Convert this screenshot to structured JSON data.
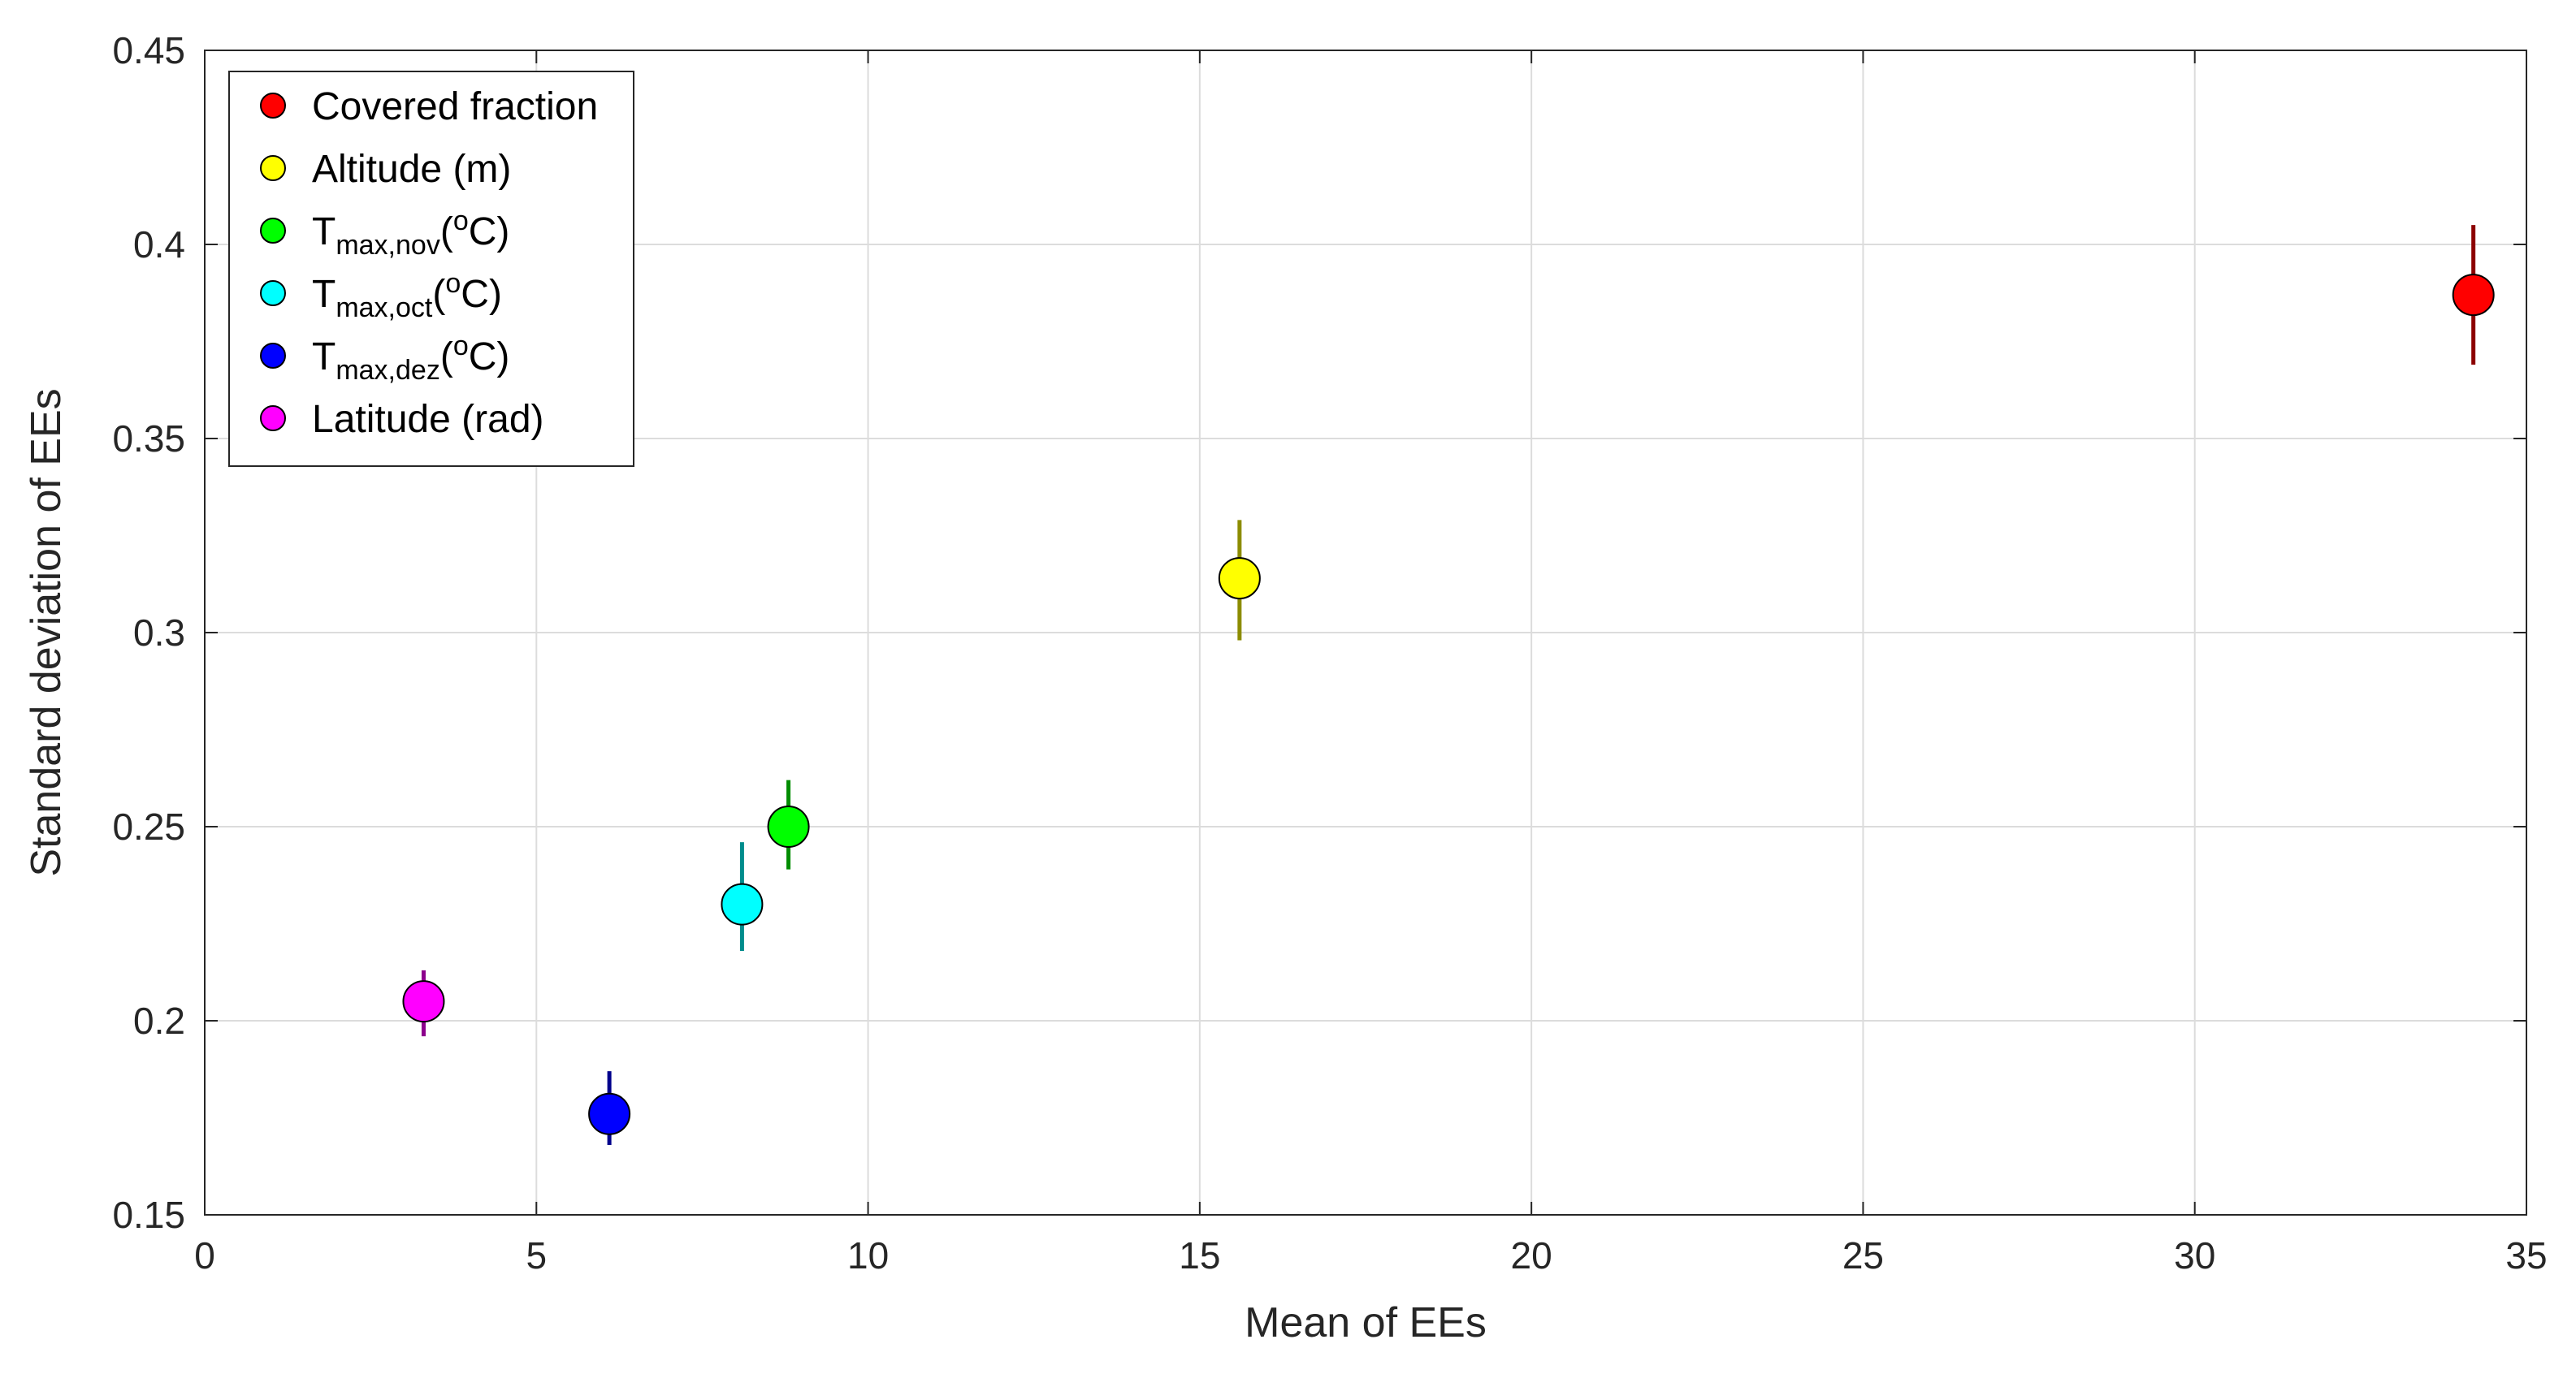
{
  "chart_data": {
    "type": "scatter",
    "xlabel": "Mean of EEs",
    "ylabel": "Standard deviation of EEs",
    "xlim": [
      0,
      35
    ],
    "ylim": [
      0.15,
      0.45
    ],
    "x_ticks": [
      0,
      5,
      10,
      15,
      20,
      25,
      30,
      35
    ],
    "y_ticks": [
      0.15,
      0.2,
      0.25,
      0.3,
      0.35,
      0.4,
      0.45
    ],
    "x_tick_labels": [
      "0",
      "5",
      "10",
      "15",
      "20",
      "25",
      "30",
      "35"
    ],
    "y_tick_labels": [
      "0.15",
      "0.2",
      "0.25",
      "0.3",
      "0.35",
      "0.4",
      "0.45"
    ],
    "grid": true,
    "legend_position": "top-left",
    "series": [
      {
        "name": "Covered fraction",
        "legend": {
          "base": "Covered fraction",
          "sub": "",
          "sup": "",
          "tail": ""
        },
        "color": "#ff0000",
        "x": 34.2,
        "y": 0.387,
        "y_low": 0.369,
        "y_high": 0.405
      },
      {
        "name": "Altitude (m)",
        "legend": {
          "base": "Altitude (m)",
          "sub": "",
          "sup": "",
          "tail": ""
        },
        "color": "#ffff00",
        "x": 15.6,
        "y": 0.314,
        "y_low": 0.298,
        "y_high": 0.329
      },
      {
        "name": "Tmax,nov(oC)",
        "legend": {
          "base": "T",
          "sub": "max,nov",
          "sup": "o",
          "tail": "C)"
        },
        "color": "#00ff00",
        "x": 8.8,
        "y": 0.25,
        "y_low": 0.239,
        "y_high": 0.262
      },
      {
        "name": "Tmax,oct(oC)",
        "legend": {
          "base": "T",
          "sub": "max,oct",
          "sup": "o",
          "tail": "C)"
        },
        "color": "#00ffff",
        "x": 8.1,
        "y": 0.23,
        "y_low": 0.218,
        "y_high": 0.246
      },
      {
        "name": "Tmax,dez(oC)",
        "legend": {
          "base": "T",
          "sub": "max,dez",
          "sup": "o",
          "tail": "C)"
        },
        "color": "#0000ff",
        "x": 6.1,
        "y": 0.176,
        "y_low": 0.168,
        "y_high": 0.187
      },
      {
        "name": "Latitude (rad)",
        "legend": {
          "base": "Latitude (rad)",
          "sub": "",
          "sup": "",
          "tail": ""
        },
        "color": "#ff00ff",
        "x": 3.3,
        "y": 0.205,
        "y_low": 0.196,
        "y_high": 0.213
      }
    ]
  }
}
